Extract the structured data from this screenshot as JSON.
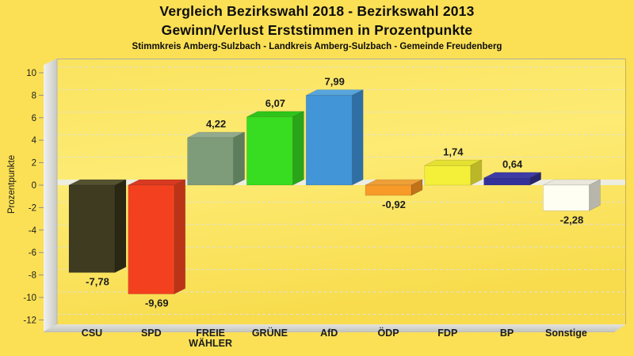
{
  "header": {
    "title_line1": "Vergleich Bezirkswahl 2018 - Bezirkswahl 2013",
    "title_line2": "Gewinn/Verlust Erststimmen in Prozentpunkte",
    "subtitle": "Stimmkreis Amberg-Sulzbach - Landkreis Amberg-Sulzbach - Gemeinde Freudenberg"
  },
  "chart_data": {
    "type": "bar",
    "style": "3d-column",
    "title": "Vergleich Bezirkswahl 2018 - Bezirkswahl 2013",
    "subtitle2": "Gewinn/Verlust Erststimmen in Prozentpunkte",
    "subtitle3": "Stimmkreis Amberg-Sulzbach - Landkreis Amberg-Sulzbach - Gemeinde Freudenberg",
    "xlabel": "",
    "ylabel": "Prozentpunkte",
    "ylim": [
      -12,
      10
    ],
    "ytick_step": 2,
    "ytick_labels": [
      "10",
      "8",
      "6",
      "4",
      "2",
      "0",
      "-2",
      "-4",
      "-6",
      "-8",
      "-10",
      "-12"
    ],
    "grid": "horizontal-dashed",
    "legend": "none",
    "categories": [
      "CSU",
      "SPD",
      "FREIE WÄHLER",
      "GRÜNE",
      "AfD",
      "ÖDP",
      "FDP",
      "BP",
      "Sonstige"
    ],
    "values": [
      -7.78,
      -9.69,
      4.22,
      6.07,
      7.99,
      -0.92,
      1.74,
      0.64,
      -2.28
    ],
    "value_labels": [
      "-7,78",
      "-9,69",
      "4,22",
      "6,07",
      "7,99",
      "-0,92",
      "1,74",
      "0,64",
      "-2,28"
    ],
    "series": [
      {
        "name": "Gewinn/Verlust Erststimmen 2018 vs 2013",
        "values": [
          -7.78,
          -9.69,
          4.22,
          6.07,
          7.99,
          -0.92,
          1.74,
          0.64,
          -2.28
        ]
      }
    ],
    "colors": [
      {
        "category": "CSU",
        "front": "#3E3B20",
        "top": "#555231",
        "side": "#2A2813"
      },
      {
        "category": "SPD",
        "front": "#F3411F",
        "top": "#D83A21",
        "side": "#BC3418"
      },
      {
        "category": "FREIE WÄHLER",
        "front": "#7E9C79",
        "top": "#92AB8E",
        "side": "#5E7D5D"
      },
      {
        "category": "GRÜNE",
        "front": "#38DC20",
        "top": "#2EC41A",
        "side": "#2AA418"
      },
      {
        "category": "AfD",
        "front": "#4295D6",
        "top": "#57A5DC",
        "side": "#2F6FA6"
      },
      {
        "category": "ÖDP",
        "front": "#F79A28",
        "top": "#EE9F38",
        "side": "#C0731A"
      },
      {
        "category": "FDP",
        "front": "#F4F03A",
        "top": "#E5E133",
        "side": "#BBB727"
      },
      {
        "category": "BP",
        "front": "#34319B",
        "top": "#3E3BA6",
        "side": "#28256E"
      },
      {
        "category": "Sonstige",
        "front": "#FFFEF3",
        "top": "#EAE8DD",
        "side": "#B8B6AB"
      }
    ],
    "palette": {
      "page_background": "#FBE055",
      "plot_gradient_top": "#FAE35E",
      "plot_gradient_mid": "#FDEB74",
      "plot_gradient_bottom": "#F8DC4D",
      "gridline": "#E0E0D2",
      "zero_plane": "#EDEDE2",
      "wall_light": "#F1F1EF",
      "wall_dark": "#C8C8C4",
      "label_color": "#1C1C1C"
    }
  }
}
